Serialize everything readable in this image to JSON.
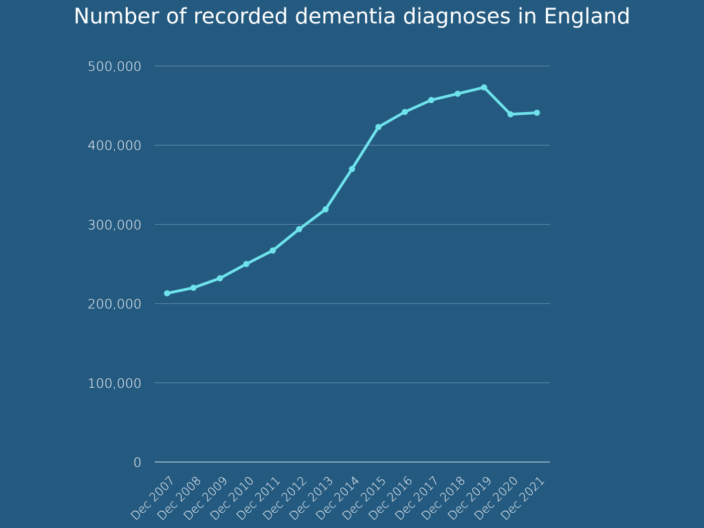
{
  "colors": {
    "background": "#245a80",
    "line": "#6fe3ec",
    "text": "#ffffff",
    "grid": "#5f87a6"
  },
  "chart_data": {
    "type": "line",
    "title": "Number of recorded dementia diagnoses in England",
    "xlabel": "",
    "ylabel": "",
    "categories": [
      "Dec 2007",
      "Dec 2008",
      "Dec 2009",
      "Dec 2010",
      "Dec 2011",
      "Dec 2012",
      "Dec 2013",
      "Dec 2014",
      "Dec 2015",
      "Dec 2016",
      "Dec 2017",
      "Dec 2018",
      "Dec 2019",
      "Dec 2020",
      "Dec 2021"
    ],
    "series": [
      {
        "values": [
          213000,
          220000,
          232000,
          250000,
          267000,
          294000,
          319000,
          370000,
          423000,
          442000,
          457000,
          465000,
          473000,
          439000,
          441000
        ]
      }
    ],
    "ylim": [
      0,
      500000
    ],
    "yticks": [
      0,
      100000,
      200000,
      300000,
      400000,
      500000
    ],
    "ytick_labels": [
      "0",
      "100,000",
      "200,000",
      "300,000",
      "400,000",
      "500,000"
    ],
    "grid": true,
    "legend": "none"
  }
}
